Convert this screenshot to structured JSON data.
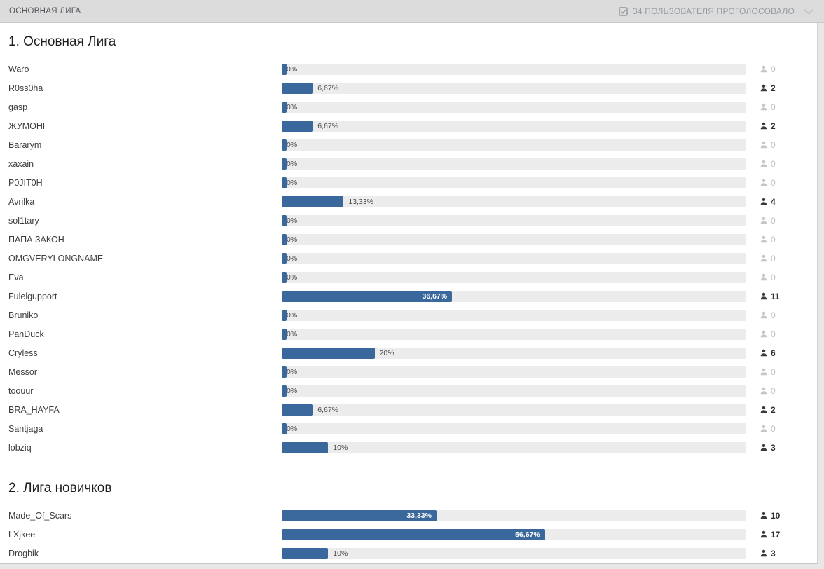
{
  "header": {
    "title": "ОСНОВНАЯ ЛИГА",
    "voters_summary": "34 ПОЛЬЗОВАТЕЛЯ ПРОГОЛОСОВАЛО"
  },
  "colors": {
    "bar_fill": "#3a679c",
    "bar_track": "#ececec",
    "topbar_bg": "#dcdcdc"
  },
  "sections": [
    {
      "title": "1. Основная Лига",
      "options": [
        {
          "label": "Waro",
          "percent": 0,
          "percent_label": "0%",
          "votes": 0
        },
        {
          "label": "R0ss0ha",
          "percent": 6.67,
          "percent_label": "6,67%",
          "votes": 2
        },
        {
          "label": "gasp",
          "percent": 0,
          "percent_label": "0%",
          "votes": 0
        },
        {
          "label": "ЖУМОНГ",
          "percent": 6.67,
          "percent_label": "6,67%",
          "votes": 2
        },
        {
          "label": "Bararym",
          "percent": 0,
          "percent_label": "0%",
          "votes": 0
        },
        {
          "label": "xaxain",
          "percent": 0,
          "percent_label": "0%",
          "votes": 0
        },
        {
          "label": "P0JIT0H",
          "percent": 0,
          "percent_label": "0%",
          "votes": 0
        },
        {
          "label": "Avrilka",
          "percent": 13.33,
          "percent_label": "13,33%",
          "votes": 4
        },
        {
          "label": "sol1tary",
          "percent": 0,
          "percent_label": "0%",
          "votes": 0
        },
        {
          "label": "ПАПА ЗАКОН",
          "percent": 0,
          "percent_label": "0%",
          "votes": 0
        },
        {
          "label": "OMGVERYLONGNAME",
          "percent": 0,
          "percent_label": "0%",
          "votes": 0
        },
        {
          "label": "Eva",
          "percent": 0,
          "percent_label": "0%",
          "votes": 0
        },
        {
          "label": "Fulelgupport",
          "percent": 36.67,
          "percent_label": "36,67%",
          "votes": 11
        },
        {
          "label": "Bruniko",
          "percent": 0,
          "percent_label": "0%",
          "votes": 0
        },
        {
          "label": "PanDuck",
          "percent": 0,
          "percent_label": "0%",
          "votes": 0
        },
        {
          "label": "Cryless",
          "percent": 20,
          "percent_label": "20%",
          "votes": 6
        },
        {
          "label": "Messor",
          "percent": 0,
          "percent_label": "0%",
          "votes": 0
        },
        {
          "label": "toouur",
          "percent": 0,
          "percent_label": "0%",
          "votes": 0
        },
        {
          "label": "BRA_HAYFA",
          "percent": 6.67,
          "percent_label": "6,67%",
          "votes": 2
        },
        {
          "label": "Santjaga",
          "percent": 0,
          "percent_label": "0%",
          "votes": 0
        },
        {
          "label": "lobziq",
          "percent": 10,
          "percent_label": "10%",
          "votes": 3
        }
      ]
    },
    {
      "title": "2. Лига новичков",
      "options": [
        {
          "label": "Made_Of_Scars",
          "percent": 33.33,
          "percent_label": "33,33%",
          "votes": 10
        },
        {
          "label": "LXjkee",
          "percent": 56.67,
          "percent_label": "56,67%",
          "votes": 17
        },
        {
          "label": "Drogbik",
          "percent": 10,
          "percent_label": "10%",
          "votes": 3
        }
      ]
    }
  ]
}
